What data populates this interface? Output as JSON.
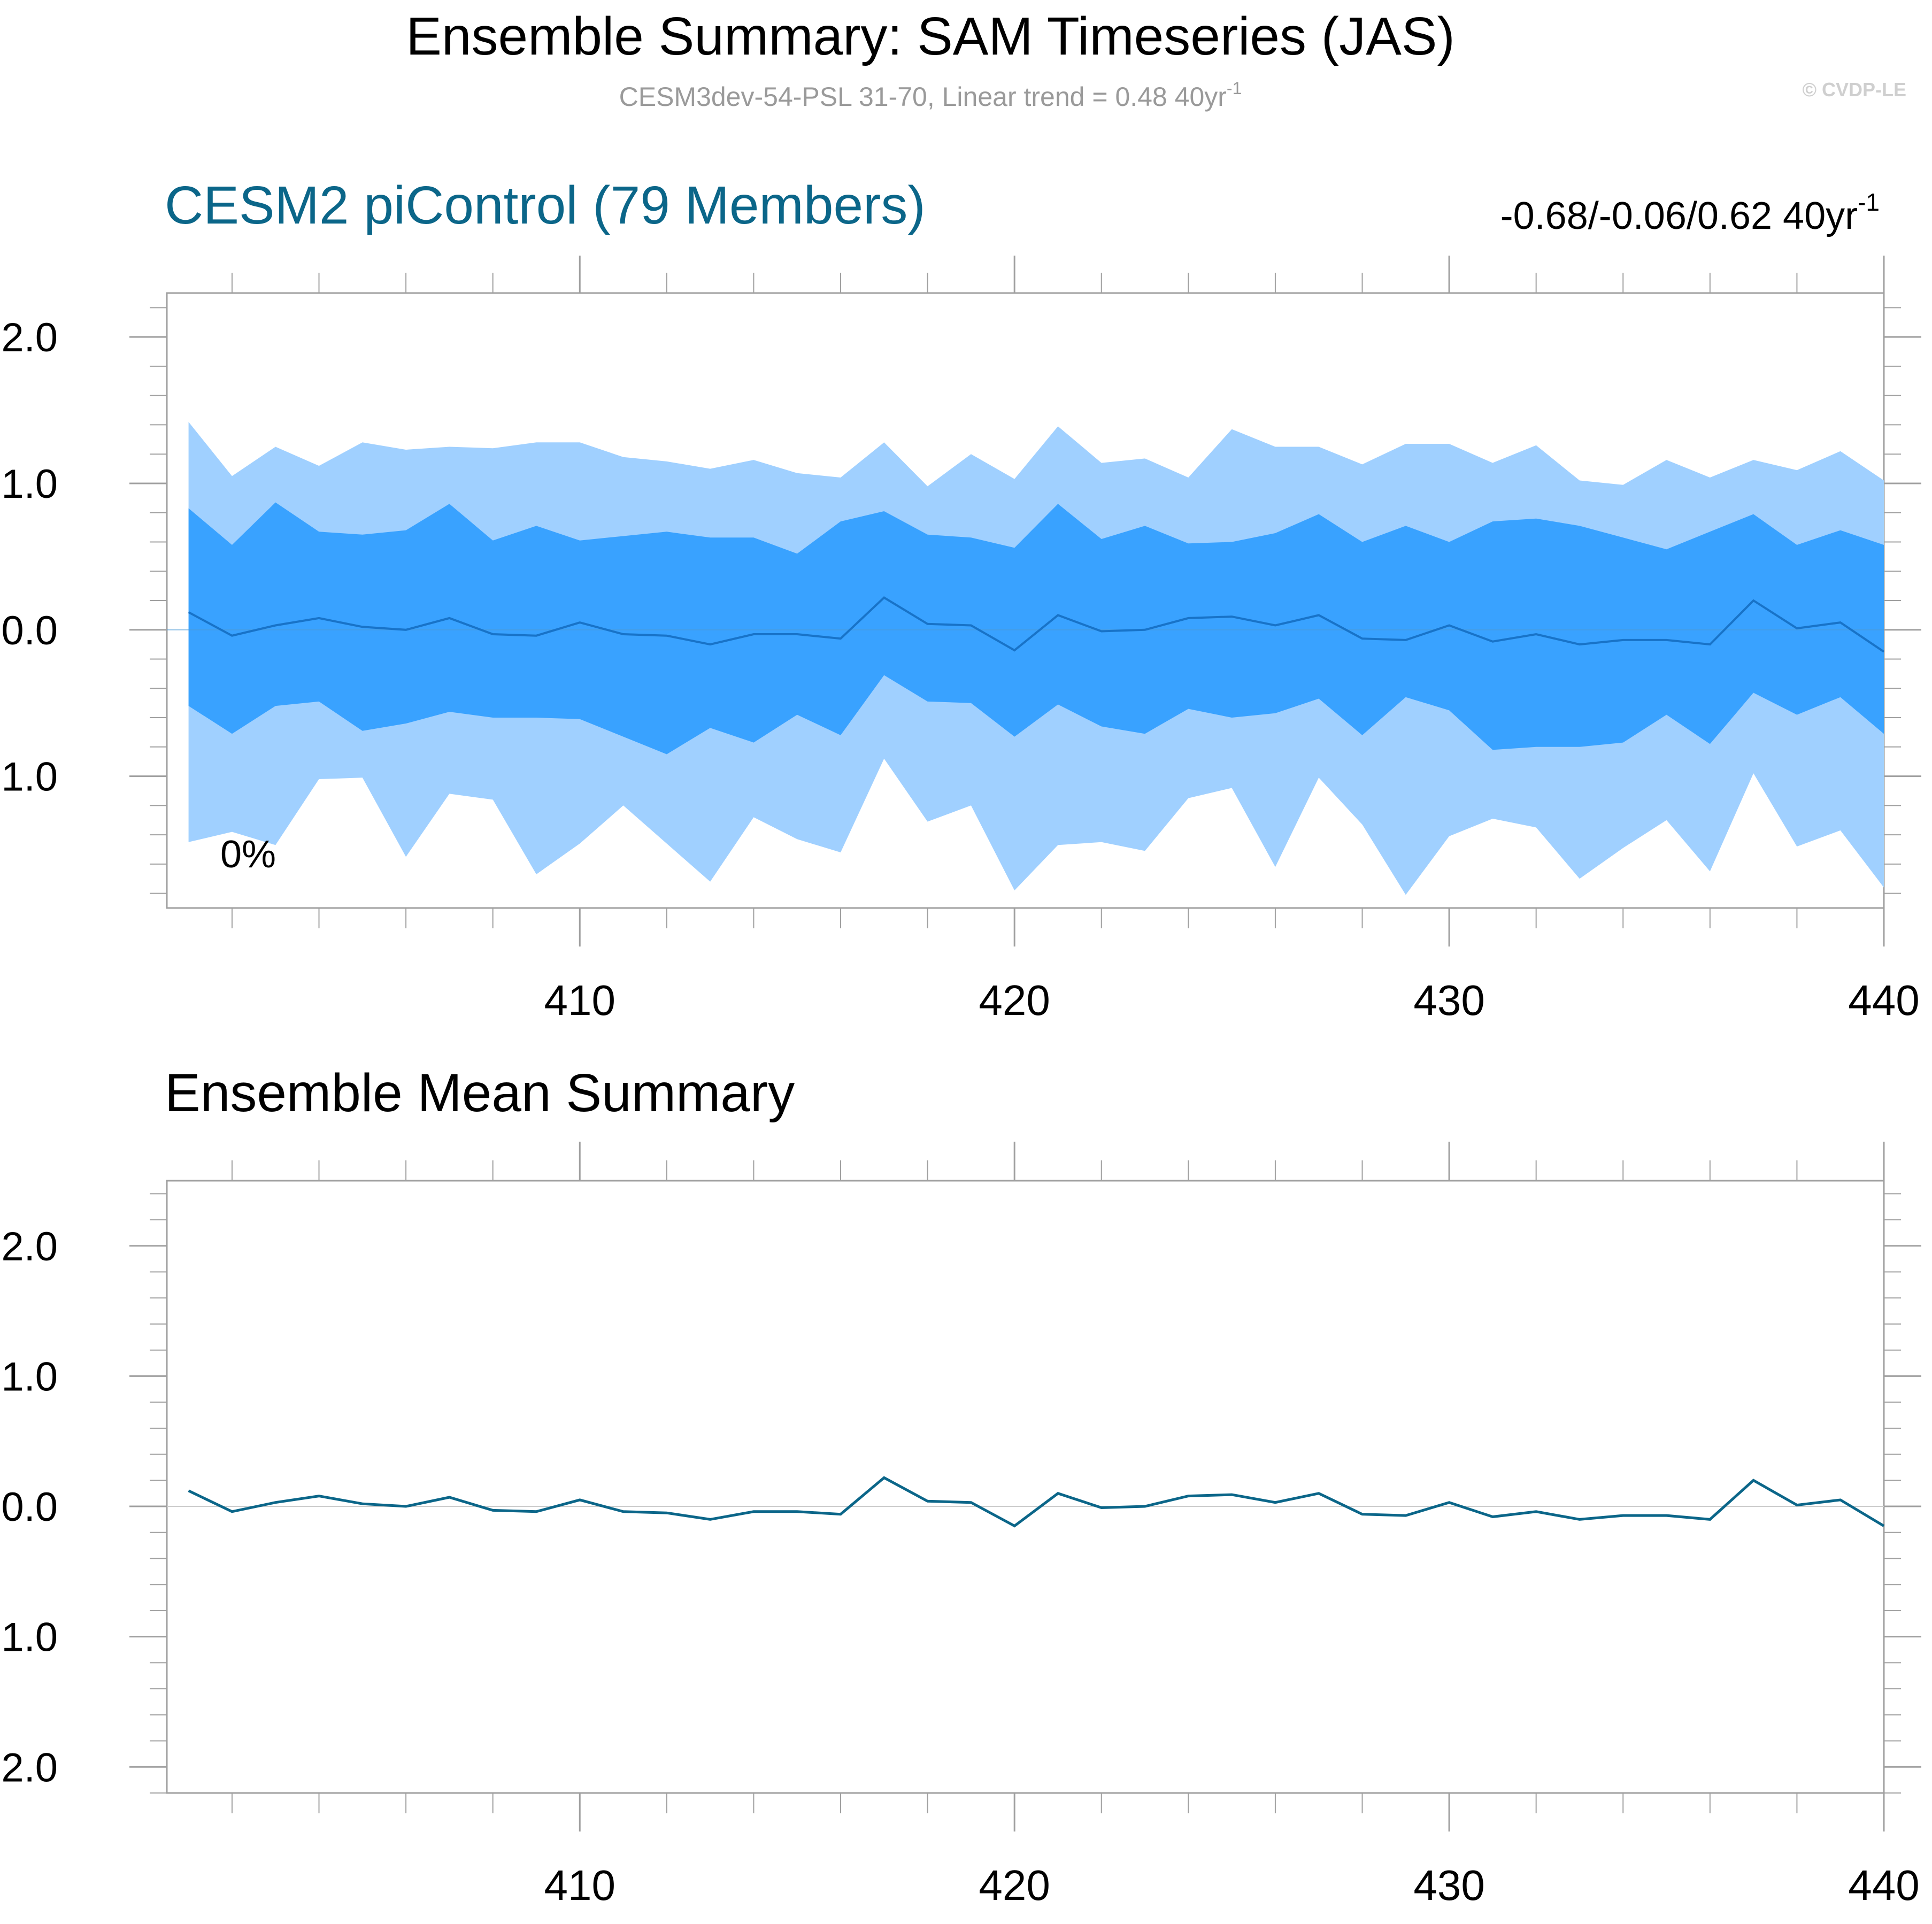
{
  "figure": {
    "title": "Ensemble Summary: SAM Timeseries (JAS)",
    "subtitle_main": "CESM3dev-54-PSL 31-70, Linear trend = 0.48 40yr",
    "subtitle_sup": "-1",
    "watermark": "© CVDP-LE"
  },
  "colors": {
    "band_outer": "#a0d0ff",
    "band_inner": "#39a2ff",
    "ens_median": "#1873c8",
    "mean_line": "#0b6689",
    "title_blue": "#0b6689",
    "axis": "#a0a0a0",
    "text": "#000000",
    "subtitle": "#9a9a9a",
    "watermark": "#cfcfcf"
  },
  "chart_data": [
    {
      "type": "area",
      "title": "CESM2 piControl (79 Members)",
      "trend_label": "-0.68/-0.06/0.62 40yr",
      "trend_sup": "-1",
      "annotation": "0%",
      "xlim": [
        400.5,
        440
      ],
      "ylim": [
        -1.9,
        2.3
      ],
      "x_ticks": [
        410,
        420,
        430,
        440
      ],
      "x_tick_labels": [
        "410",
        "420",
        "430",
        "440"
      ],
      "y_ticks": [
        -1.0,
        0.0,
        1.0,
        2.0
      ],
      "y_tick_labels": [
        "-1.0",
        "0.0",
        "1.0",
        "2.0"
      ],
      "x": [
        401,
        402,
        403,
        404,
        405,
        406,
        407,
        408,
        409,
        410,
        411,
        412,
        413,
        414,
        415,
        416,
        417,
        418,
        419,
        420,
        421,
        422,
        423,
        424,
        425,
        426,
        427,
        428,
        429,
        430,
        431,
        432,
        433,
        434,
        435,
        436,
        437,
        438,
        439,
        440
      ],
      "series": [
        {
          "role": "outer_upper",
          "values": [
            1.42,
            1.05,
            1.25,
            1.12,
            1.28,
            1.23,
            1.25,
            1.24,
            1.28,
            1.28,
            1.18,
            1.15,
            1.1,
            1.16,
            1.07,
            1.04,
            1.28,
            0.98,
            1.2,
            1.03,
            1.39,
            1.14,
            1.17,
            1.04,
            1.37,
            1.25,
            1.25,
            1.13,
            1.27,
            1.27,
            1.14,
            1.26,
            1.02,
            0.99,
            1.16,
            1.04,
            1.16,
            1.09,
            1.22,
            1.02
          ]
        },
        {
          "role": "inner_upper",
          "values": [
            0.83,
            0.58,
            0.87,
            0.67,
            0.65,
            0.68,
            0.86,
            0.61,
            0.71,
            0.61,
            0.64,
            0.67,
            0.63,
            0.63,
            0.52,
            0.74,
            0.81,
            0.65,
            0.63,
            0.56,
            0.86,
            0.62,
            0.71,
            0.59,
            0.6,
            0.66,
            0.79,
            0.6,
            0.71,
            0.6,
            0.74,
            0.76,
            0.71,
            0.63,
            0.55,
            0.67,
            0.79,
            0.58,
            0.68,
            0.58
          ]
        },
        {
          "role": "median",
          "values": [
            0.12,
            -0.04,
            0.03,
            0.08,
            0.02,
            0.0,
            0.08,
            -0.03,
            -0.04,
            0.05,
            -0.03,
            -0.04,
            -0.1,
            -0.03,
            -0.03,
            -0.06,
            0.22,
            0.04,
            0.03,
            -0.14,
            0.1,
            -0.01,
            0.0,
            0.08,
            0.09,
            0.03,
            0.1,
            -0.06,
            -0.07,
            0.03,
            -0.08,
            -0.03,
            -0.1,
            -0.07,
            -0.07,
            -0.1,
            0.2,
            0.01,
            0.05,
            -0.15
          ]
        },
        {
          "role": "inner_lower",
          "values": [
            -0.52,
            -0.71,
            -0.52,
            -0.49,
            -0.69,
            -0.64,
            -0.56,
            -0.6,
            -0.6,
            -0.61,
            -0.73,
            -0.85,
            -0.67,
            -0.77,
            -0.58,
            -0.72,
            -0.31,
            -0.49,
            -0.5,
            -0.73,
            -0.51,
            -0.66,
            -0.71,
            -0.54,
            -0.6,
            -0.57,
            -0.47,
            -0.72,
            -0.46,
            -0.55,
            -0.82,
            -0.8,
            -0.8,
            -0.77,
            -0.58,
            -0.78,
            -0.43,
            -0.58,
            -0.46,
            -0.71
          ]
        },
        {
          "role": "outer_lower",
          "values": [
            -1.45,
            -1.38,
            -1.47,
            -1.02,
            -1.01,
            -1.55,
            -1.12,
            -1.16,
            -1.67,
            -1.46,
            -1.2,
            -1.46,
            -1.72,
            -1.28,
            -1.43,
            -1.52,
            -0.88,
            -1.31,
            -1.2,
            -1.78,
            -1.47,
            -1.45,
            -1.51,
            -1.15,
            -1.08,
            -1.62,
            -1.01,
            -1.33,
            -1.81,
            -1.41,
            -1.29,
            -1.35,
            -1.7,
            -1.49,
            -1.3,
            -1.65,
            -0.98,
            -1.48,
            -1.37,
            -1.76
          ]
        }
      ]
    },
    {
      "type": "line",
      "title": "Ensemble Mean Summary",
      "xlim": [
        400.5,
        440
      ],
      "ylim": [
        -2.2,
        2.5
      ],
      "x_ticks": [
        410,
        420,
        430,
        440
      ],
      "x_tick_labels": [
        "410",
        "420",
        "430",
        "440"
      ],
      "y_ticks": [
        -2.0,
        -1.0,
        0.0,
        1.0,
        2.0
      ],
      "y_tick_labels": [
        "-2.0",
        "-1.0",
        "0.0",
        "1.0",
        "2.0"
      ],
      "x": [
        401,
        402,
        403,
        404,
        405,
        406,
        407,
        408,
        409,
        410,
        411,
        412,
        413,
        414,
        415,
        416,
        417,
        418,
        419,
        420,
        421,
        422,
        423,
        424,
        425,
        426,
        427,
        428,
        429,
        430,
        431,
        432,
        433,
        434,
        435,
        436,
        437,
        438,
        439,
        440
      ],
      "series": [
        {
          "values": [
            0.12,
            -0.04,
            0.03,
            0.08,
            0.02,
            0.0,
            0.07,
            -0.03,
            -0.04,
            0.05,
            -0.04,
            -0.05,
            -0.1,
            -0.04,
            -0.04,
            -0.06,
            0.22,
            0.04,
            0.03,
            -0.15,
            0.1,
            -0.01,
            0.0,
            0.08,
            0.09,
            0.03,
            0.1,
            -0.06,
            -0.07,
            0.03,
            -0.08,
            -0.04,
            -0.1,
            -0.07,
            -0.07,
            -0.1,
            0.2,
            0.01,
            0.05,
            -0.15
          ]
        }
      ]
    }
  ]
}
